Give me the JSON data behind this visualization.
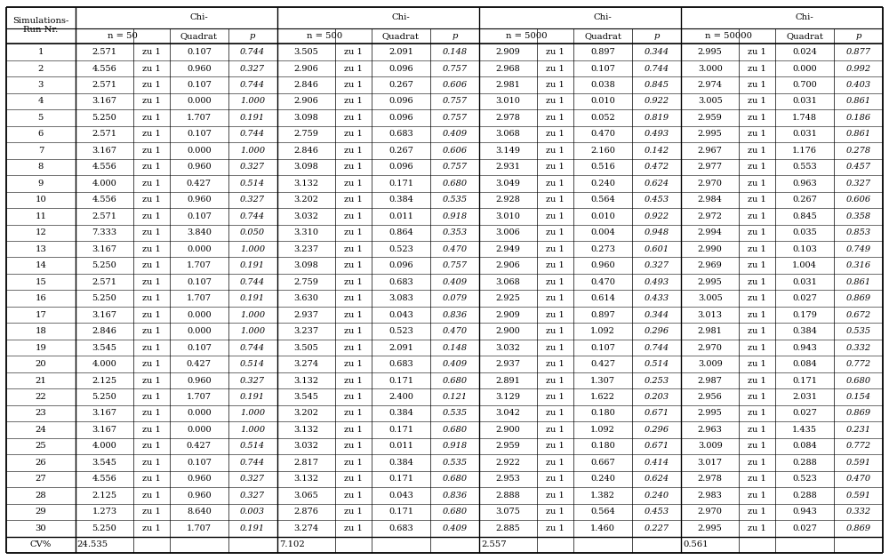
{
  "n_labels": [
    "n = 50",
    "n = 500",
    "n = 5000",
    "n = 50000"
  ],
  "rows": [
    [
      1,
      "2.571",
      "zu 1",
      "0.107",
      "0.744",
      "3.505",
      "zu 1",
      "2.091",
      "0.148",
      "2.909",
      "zu 1",
      "0.897",
      "0.344",
      "2.995",
      "zu 1",
      "0.024",
      "0.877"
    ],
    [
      2,
      "4.556",
      "zu 1",
      "0.960",
      "0.327",
      "2.906",
      "zu 1",
      "0.096",
      "0.757",
      "2.968",
      "zu 1",
      "0.107",
      "0.744",
      "3.000",
      "zu 1",
      "0.000",
      "0.992"
    ],
    [
      3,
      "2.571",
      "zu 1",
      "0.107",
      "0.744",
      "2.846",
      "zu 1",
      "0.267",
      "0.606",
      "2.981",
      "zu 1",
      "0.038",
      "0.845",
      "2.974",
      "zu 1",
      "0.700",
      "0.403"
    ],
    [
      4,
      "3.167",
      "zu 1",
      "0.000",
      "1.000",
      "2.906",
      "zu 1",
      "0.096",
      "0.757",
      "3.010",
      "zu 1",
      "0.010",
      "0.922",
      "3.005",
      "zu 1",
      "0.031",
      "0.861"
    ],
    [
      5,
      "5.250",
      "zu 1",
      "1.707",
      "0.191",
      "3.098",
      "zu 1",
      "0.096",
      "0.757",
      "2.978",
      "zu 1",
      "0.052",
      "0.819",
      "2.959",
      "zu 1",
      "1.748",
      "0.186"
    ],
    [
      6,
      "2.571",
      "zu 1",
      "0.107",
      "0.744",
      "2.759",
      "zu 1",
      "0.683",
      "0.409",
      "3.068",
      "zu 1",
      "0.470",
      "0.493",
      "2.995",
      "zu 1",
      "0.031",
      "0.861"
    ],
    [
      7,
      "3.167",
      "zu 1",
      "0.000",
      "1.000",
      "2.846",
      "zu 1",
      "0.267",
      "0.606",
      "3.149",
      "zu 1",
      "2.160",
      "0.142",
      "2.967",
      "zu 1",
      "1.176",
      "0.278"
    ],
    [
      8,
      "4.556",
      "zu 1",
      "0.960",
      "0.327",
      "3.098",
      "zu 1",
      "0.096",
      "0.757",
      "2.931",
      "zu 1",
      "0.516",
      "0.472",
      "2.977",
      "zu 1",
      "0.553",
      "0.457"
    ],
    [
      9,
      "4.000",
      "zu 1",
      "0.427",
      "0.514",
      "3.132",
      "zu 1",
      "0.171",
      "0.680",
      "3.049",
      "zu 1",
      "0.240",
      "0.624",
      "2.970",
      "zu 1",
      "0.963",
      "0.327"
    ],
    [
      10,
      "4.556",
      "zu 1",
      "0.960",
      "0.327",
      "3.202",
      "zu 1",
      "0.384",
      "0.535",
      "2.928",
      "zu 1",
      "0.564",
      "0.453",
      "2.984",
      "zu 1",
      "0.267",
      "0.606"
    ],
    [
      11,
      "2.571",
      "zu 1",
      "0.107",
      "0.744",
      "3.032",
      "zu 1",
      "0.011",
      "0.918",
      "3.010",
      "zu 1",
      "0.010",
      "0.922",
      "2.972",
      "zu 1",
      "0.845",
      "0.358"
    ],
    [
      12,
      "7.333",
      "zu 1",
      "3.840",
      "0.050",
      "3.310",
      "zu 1",
      "0.864",
      "0.353",
      "3.006",
      "zu 1",
      "0.004",
      "0.948",
      "2.994",
      "zu 1",
      "0.035",
      "0.853"
    ],
    [
      13,
      "3.167",
      "zu 1",
      "0.000",
      "1.000",
      "3.237",
      "zu 1",
      "0.523",
      "0.470",
      "2.949",
      "zu 1",
      "0.273",
      "0.601",
      "2.990",
      "zu 1",
      "0.103",
      "0.749"
    ],
    [
      14,
      "5.250",
      "zu 1",
      "1.707",
      "0.191",
      "3.098",
      "zu 1",
      "0.096",
      "0.757",
      "2.906",
      "zu 1",
      "0.960",
      "0.327",
      "2.969",
      "zu 1",
      "1.004",
      "0.316"
    ],
    [
      15,
      "2.571",
      "zu 1",
      "0.107",
      "0.744",
      "2.759",
      "zu 1",
      "0.683",
      "0.409",
      "3.068",
      "zu 1",
      "0.470",
      "0.493",
      "2.995",
      "zu 1",
      "0.031",
      "0.861"
    ],
    [
      16,
      "5.250",
      "zu 1",
      "1.707",
      "0.191",
      "3.630",
      "zu 1",
      "3.083",
      "0.079",
      "2.925",
      "zu 1",
      "0.614",
      "0.433",
      "3.005",
      "zu 1",
      "0.027",
      "0.869"
    ],
    [
      17,
      "3.167",
      "zu 1",
      "0.000",
      "1.000",
      "2.937",
      "zu 1",
      "0.043",
      "0.836",
      "2.909",
      "zu 1",
      "0.897",
      "0.344",
      "3.013",
      "zu 1",
      "0.179",
      "0.672"
    ],
    [
      18,
      "2.846",
      "zu 1",
      "0.000",
      "1.000",
      "3.237",
      "zu 1",
      "0.523",
      "0.470",
      "2.900",
      "zu 1",
      "1.092",
      "0.296",
      "2.981",
      "zu 1",
      "0.384",
      "0.535"
    ],
    [
      19,
      "3.545",
      "zu 1",
      "0.107",
      "0.744",
      "3.505",
      "zu 1",
      "2.091",
      "0.148",
      "3.032",
      "zu 1",
      "0.107",
      "0.744",
      "2.970",
      "zu 1",
      "0.943",
      "0.332"
    ],
    [
      20,
      "4.000",
      "zu 1",
      "0.427",
      "0.514",
      "3.274",
      "zu 1",
      "0.683",
      "0.409",
      "2.937",
      "zu 1",
      "0.427",
      "0.514",
      "3.009",
      "zu 1",
      "0.084",
      "0.772"
    ],
    [
      21,
      "2.125",
      "zu 1",
      "0.960",
      "0.327",
      "3.132",
      "zu 1",
      "0.171",
      "0.680",
      "2.891",
      "zu 1",
      "1.307",
      "0.253",
      "2.987",
      "zu 1",
      "0.171",
      "0.680"
    ],
    [
      22,
      "5.250",
      "zu 1",
      "1.707",
      "0.191",
      "3.545",
      "zu 1",
      "2.400",
      "0.121",
      "3.129",
      "zu 1",
      "1.622",
      "0.203",
      "2.956",
      "zu 1",
      "2.031",
      "0.154"
    ],
    [
      23,
      "3.167",
      "zu 1",
      "0.000",
      "1.000",
      "3.202",
      "zu 1",
      "0.384",
      "0.535",
      "3.042",
      "zu 1",
      "0.180",
      "0.671",
      "2.995",
      "zu 1",
      "0.027",
      "0.869"
    ],
    [
      24,
      "3.167",
      "zu 1",
      "0.000",
      "1.000",
      "3.132",
      "zu 1",
      "0.171",
      "0.680",
      "2.900",
      "zu 1",
      "1.092",
      "0.296",
      "2.963",
      "zu 1",
      "1.435",
      "0.231"
    ],
    [
      25,
      "4.000",
      "zu 1",
      "0.427",
      "0.514",
      "3.032",
      "zu 1",
      "0.011",
      "0.918",
      "2.959",
      "zu 1",
      "0.180",
      "0.671",
      "3.009",
      "zu 1",
      "0.084",
      "0.772"
    ],
    [
      26,
      "3.545",
      "zu 1",
      "0.107",
      "0.744",
      "2.817",
      "zu 1",
      "0.384",
      "0.535",
      "2.922",
      "zu 1",
      "0.667",
      "0.414",
      "3.017",
      "zu 1",
      "0.288",
      "0.591"
    ],
    [
      27,
      "4.556",
      "zu 1",
      "0.960",
      "0.327",
      "3.132",
      "zu 1",
      "0.171",
      "0.680",
      "2.953",
      "zu 1",
      "0.240",
      "0.624",
      "2.978",
      "zu 1",
      "0.523",
      "0.470"
    ],
    [
      28,
      "2.125",
      "zu 1",
      "0.960",
      "0.327",
      "3.065",
      "zu 1",
      "0.043",
      "0.836",
      "2.888",
      "zu 1",
      "1.382",
      "0.240",
      "2.983",
      "zu 1",
      "0.288",
      "0.591"
    ],
    [
      29,
      "1.273",
      "zu 1",
      "8.640",
      "0.003",
      "2.876",
      "zu 1",
      "0.171",
      "0.680",
      "3.075",
      "zu 1",
      "0.564",
      "0.453",
      "2.970",
      "zu 1",
      "0.943",
      "0.332"
    ],
    [
      30,
      "5.250",
      "zu 1",
      "1.707",
      "0.191",
      "3.274",
      "zu 1",
      "0.683",
      "0.409",
      "2.885",
      "zu 1",
      "1.460",
      "0.227",
      "2.995",
      "zu 1",
      "0.027",
      "0.869"
    ]
  ],
  "cv_vals": [
    "24.535",
    "7.102",
    "2.557",
    "0.561"
  ],
  "bg_color": "#ffffff",
  "text_color": "#000000",
  "border_color": "#000000"
}
